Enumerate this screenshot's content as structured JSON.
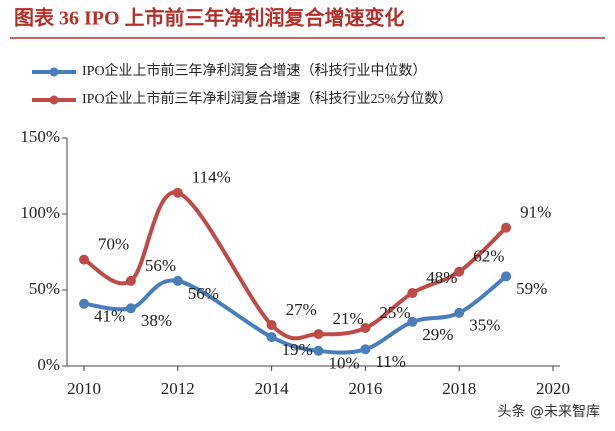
{
  "chart_data": {
    "type": "line",
    "title": "图表 36 IPO 上市前三年净利润复合增速变化",
    "x": [
      2010,
      2011,
      2012,
      2014,
      2015,
      2016,
      2017,
      2018,
      2019
    ],
    "series": [
      {
        "name": "IPO企业上市前三年净利润复合增速（科技行业中位数）",
        "color": "#4a7ebb",
        "values": [
          41,
          38,
          56,
          19,
          10,
          11,
          29,
          35,
          59
        ],
        "value_labels": [
          "41%",
          "38%",
          "56%",
          "19%",
          "10%",
          "11%",
          "29%",
          "35%",
          "59%"
        ]
      },
      {
        "name": "IPO企业上市前三年净利润复合增速（科技行业25%分位数）",
        "color": "#be4b48",
        "values": [
          70,
          56,
          114,
          27,
          21,
          25,
          48,
          62,
          91
        ],
        "value_labels": [
          "70%",
          "56%",
          "114%",
          "27%",
          "21%",
          "25%",
          "48%",
          "62%",
          "91%"
        ]
      }
    ],
    "xlim": [
      2010,
      2020
    ],
    "xticks": [
      2010,
      2012,
      2014,
      2016,
      2018,
      2020
    ],
    "ylim": [
      0,
      150
    ],
    "yticks": [
      {
        "value": 0,
        "label": "0%"
      },
      {
        "value": 50,
        "label": "50%"
      },
      {
        "value": 100,
        "label": "100%"
      },
      {
        "value": 150,
        "label": "150%"
      }
    ],
    "legend": "top-left",
    "watermark": "头条 @未来智库"
  }
}
